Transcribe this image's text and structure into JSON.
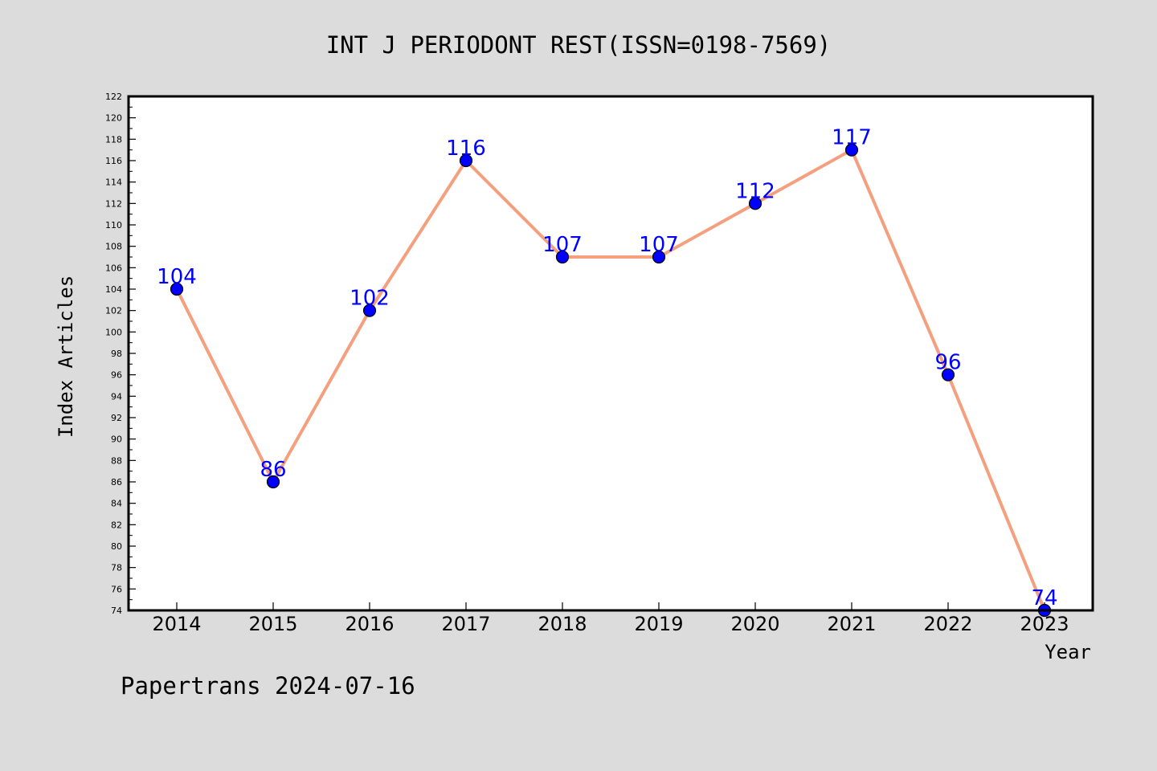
{
  "chart_data": {
    "type": "line",
    "title": "INT J PERIODONT REST(ISSN=0198-7569)",
    "xlabel": "Year",
    "ylabel": "Index Articles",
    "categories": [
      "2014",
      "2015",
      "2016",
      "2017",
      "2018",
      "2019",
      "2020",
      "2021",
      "2022",
      "2023"
    ],
    "series": [
      {
        "values": [
          104,
          86,
          102,
          116,
          107,
          107,
          112,
          117,
          96,
          74
        ]
      }
    ],
    "ylim": [
      74,
      122
    ],
    "yticks": [
      74,
      76,
      78,
      80,
      82,
      84,
      86,
      88,
      90,
      92,
      94,
      96,
      98,
      100,
      102,
      104,
      106,
      108,
      110,
      112,
      114,
      116,
      118,
      120,
      122
    ],
    "grid": false,
    "data_labels": true,
    "colors": {
      "line": "#f4a07f",
      "marker": "#0000ff",
      "marker_edge": "#000000",
      "data_label": "#0000ff",
      "plot_background": "#ffffff",
      "figure_background": "#dcdcdc"
    }
  },
  "footer": {
    "text": "Papertrans 2024-07-16"
  }
}
